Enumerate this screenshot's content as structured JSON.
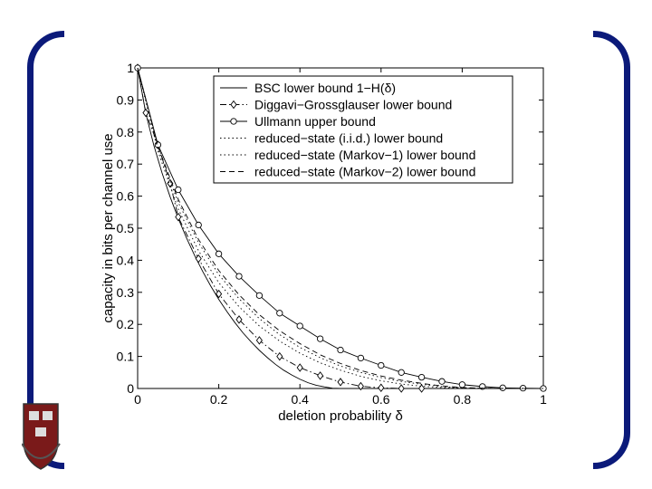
{
  "frame": {
    "accent": "#0b1a7a"
  },
  "chart_data": {
    "type": "line",
    "xlabel": "deletion probability δ",
    "ylabel": "capacity in bits per channel use",
    "xlim": [
      0,
      1
    ],
    "ylim": [
      0,
      1
    ],
    "xticks": [
      "0",
      "0.2",
      "0.4",
      "0.6",
      "0.8",
      "1"
    ],
    "yticks": [
      "0",
      "0.1",
      "0.2",
      "0.3",
      "0.4",
      "0.5",
      "0.6",
      "0.7",
      "0.8",
      "0.9",
      "1"
    ],
    "grid": false,
    "legend_position": "top-right",
    "series": [
      {
        "name": "BSC lower bound 1−H(δ)",
        "style": "solid",
        "marker": "none",
        "x": [
          0,
          0.02,
          0.04,
          0.06,
          0.08,
          0.1,
          0.12,
          0.14,
          0.16,
          0.18,
          0.2,
          0.22,
          0.24,
          0.26,
          0.28,
          0.3,
          0.32,
          0.34,
          0.36,
          0.38,
          0.4,
          0.42,
          0.44,
          0.46,
          0.48,
          0.5
        ],
        "y": [
          1,
          0.859,
          0.758,
          0.673,
          0.598,
          0.531,
          0.471,
          0.416,
          0.366,
          0.32,
          0.278,
          0.24,
          0.205,
          0.173,
          0.145,
          0.119,
          0.096,
          0.075,
          0.057,
          0.042,
          0.029,
          0.018,
          0.01,
          0.005,
          0.001,
          0
        ]
      },
      {
        "name": "Diggavi−Grossglauser lower bound",
        "style": "dashdot",
        "marker": "diamond",
        "x": [
          0,
          0.02,
          0.05,
          0.08,
          0.1,
          0.15,
          0.2,
          0.25,
          0.3,
          0.35,
          0.4,
          0.45,
          0.5,
          0.55,
          0.6,
          0.65,
          0.7
        ],
        "y": [
          1,
          0.86,
          0.76,
          0.64,
          0.535,
          0.405,
          0.295,
          0.215,
          0.15,
          0.1,
          0.065,
          0.04,
          0.02,
          0.007,
          0.002,
          0,
          0
        ]
      },
      {
        "name": "Ullmann upper bound",
        "style": "solid",
        "marker": "circle",
        "x": [
          0,
          0.05,
          0.1,
          0.15,
          0.2,
          0.25,
          0.3,
          0.35,
          0.4,
          0.45,
          0.5,
          0.55,
          0.6,
          0.65,
          0.7,
          0.75,
          0.8,
          0.85,
          0.9,
          0.95,
          1
        ],
        "y": [
          1,
          0.76,
          0.62,
          0.51,
          0.42,
          0.35,
          0.29,
          0.235,
          0.195,
          0.155,
          0.12,
          0.095,
          0.072,
          0.05,
          0.035,
          0.022,
          0.012,
          0.006,
          0.002,
          0.001,
          0
        ]
      },
      {
        "name": "reduced−state (i.i.d.) lower bound",
        "style": "dotted",
        "marker": "none",
        "x": [
          0,
          0.05,
          0.1,
          0.15,
          0.2,
          0.25,
          0.3,
          0.35,
          0.4,
          0.45,
          0.5,
          0.55,
          0.6,
          0.65,
          0.7,
          0.75,
          0.8,
          0.85,
          0.9,
          0.95,
          1
        ],
        "y": [
          1,
          0.74,
          0.56,
          0.43,
          0.33,
          0.255,
          0.195,
          0.148,
          0.11,
          0.08,
          0.057,
          0.038,
          0.024,
          0.014,
          0.007,
          0.003,
          0.001,
          0,
          0,
          0,
          0
        ]
      },
      {
        "name": "reduced−state (Markov−1) lower bound",
        "style": "dotted",
        "marker": "none",
        "x": [
          0,
          0.05,
          0.1,
          0.15,
          0.2,
          0.25,
          0.3,
          0.35,
          0.4,
          0.45,
          0.5,
          0.55,
          0.6,
          0.65,
          0.7,
          0.75,
          0.8,
          0.85,
          0.9,
          0.95,
          1
        ],
        "y": [
          1,
          0.75,
          0.58,
          0.455,
          0.355,
          0.28,
          0.218,
          0.168,
          0.128,
          0.096,
          0.07,
          0.05,
          0.034,
          0.022,
          0.013,
          0.006,
          0.002,
          0.001,
          0,
          0,
          0
        ]
      },
      {
        "name": "reduced−state (Markov−2) lower bound",
        "style": "dashed",
        "marker": "none",
        "x": [
          0,
          0.05,
          0.1,
          0.15,
          0.2,
          0.25,
          0.3,
          0.35,
          0.4,
          0.45,
          0.5,
          0.55,
          0.6,
          0.65,
          0.7,
          0.75,
          0.8,
          0.85,
          0.9,
          0.95,
          1
        ],
        "y": [
          1,
          0.755,
          0.59,
          0.465,
          0.368,
          0.292,
          0.23,
          0.18,
          0.14,
          0.105,
          0.078,
          0.056,
          0.039,
          0.026,
          0.016,
          0.008,
          0.003,
          0.001,
          0,
          0,
          0
        ]
      }
    ]
  }
}
